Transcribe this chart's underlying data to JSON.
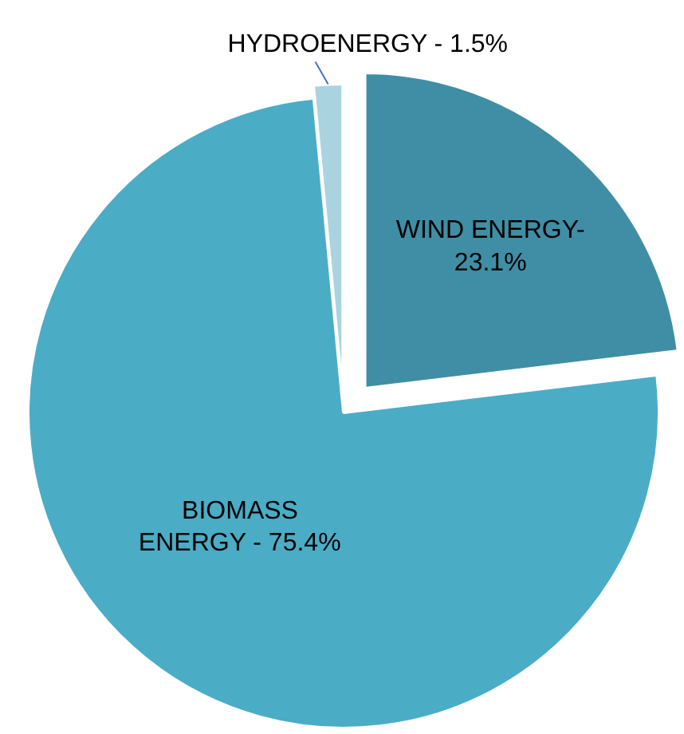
{
  "chart_data": {
    "type": "pie",
    "categories": [
      "WIND ENERGY-",
      "BIOMASS\nENERGY -",
      "HYDROENERGY -"
    ],
    "values": [
      23.1,
      75.4,
      1.5
    ],
    "colors": [
      "#3f8ea5",
      "#4bacc6",
      "#a9d4df"
    ],
    "value_labels": [
      "23.1%",
      "75.4%",
      "1.5%"
    ]
  }
}
